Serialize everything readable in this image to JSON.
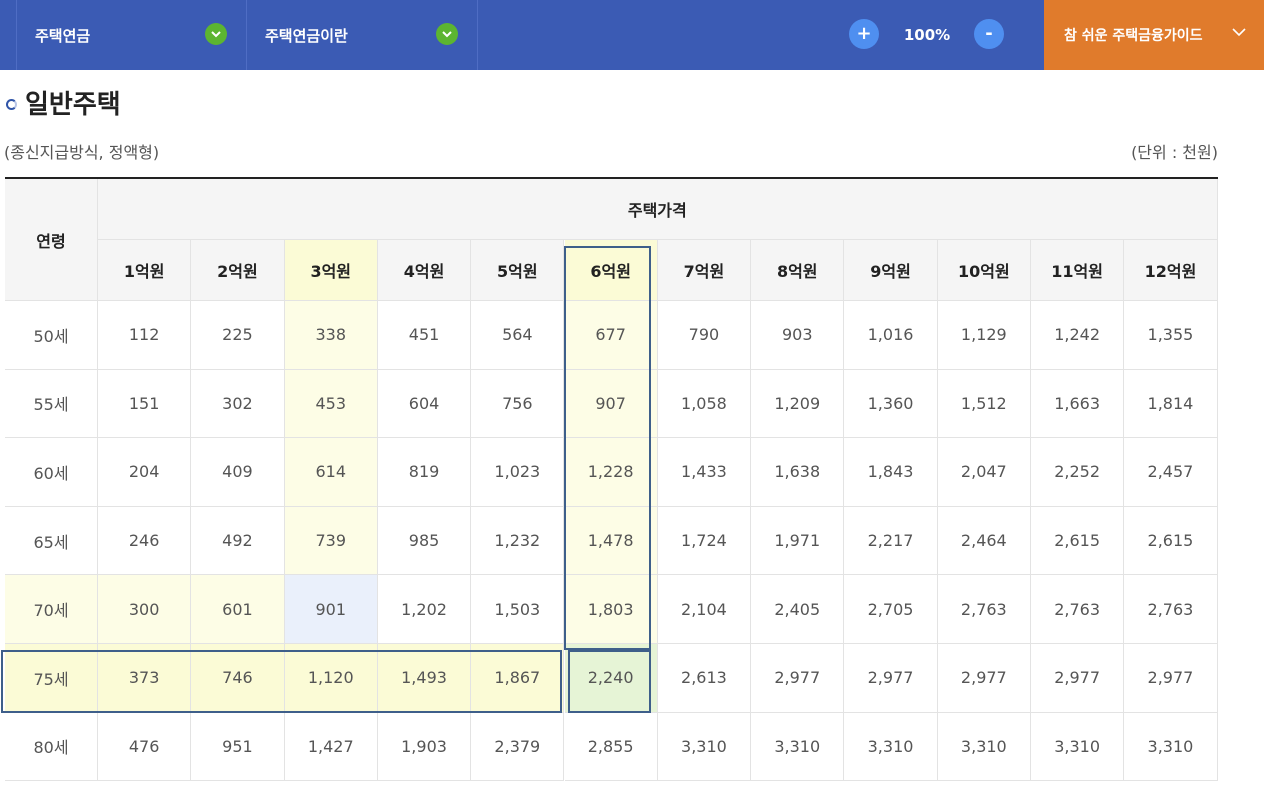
{
  "topbar": {
    "menu1": "주택연금",
    "menu2": "주택연금이란",
    "zoom_in": "+",
    "zoom_level": "100%",
    "zoom_out": "-",
    "guide": "참 쉬운 주택금융가이드"
  },
  "page": {
    "title": "일반주택",
    "subtitle": "(종신지급방식, 정액형)",
    "unit": "(단위 : 천원)"
  },
  "table": {
    "age_header": "연령",
    "price_header": "주택가격",
    "columns": [
      "1억원",
      "2억원",
      "3억원",
      "4억원",
      "5억원",
      "6억원",
      "7억원",
      "8억원",
      "9억원",
      "10억원",
      "11억원",
      "12억원"
    ],
    "rows": [
      {
        "age": "50세",
        "values": [
          "112",
          "225",
          "338",
          "451",
          "564",
          "677",
          "790",
          "903",
          "1,016",
          "1,129",
          "1,242",
          "1,355"
        ]
      },
      {
        "age": "55세",
        "values": [
          "151",
          "302",
          "453",
          "604",
          "756",
          "907",
          "1,058",
          "1,209",
          "1,360",
          "1,512",
          "1,663",
          "1,814"
        ]
      },
      {
        "age": "60세",
        "values": [
          "204",
          "409",
          "614",
          "819",
          "1,023",
          "1,228",
          "1,433",
          "1,638",
          "1,843",
          "2,047",
          "2,252",
          "2,457"
        ]
      },
      {
        "age": "65세",
        "values": [
          "246",
          "492",
          "739",
          "985",
          "1,232",
          "1,478",
          "1,724",
          "1,971",
          "2,217",
          "2,464",
          "2,615",
          "2,615"
        ]
      },
      {
        "age": "70세",
        "values": [
          "300",
          "601",
          "901",
          "1,202",
          "1,503",
          "1,803",
          "2,104",
          "2,405",
          "2,705",
          "2,763",
          "2,763",
          "2,763"
        ]
      },
      {
        "age": "75세",
        "values": [
          "373",
          "746",
          "1,120",
          "1,493",
          "1,867",
          "2,240",
          "2,613",
          "2,977",
          "2,977",
          "2,977",
          "2,977",
          "2,977"
        ]
      },
      {
        "age": "80세",
        "values": [
          "476",
          "951",
          "1,427",
          "1,903",
          "2,379",
          "2,855",
          "3,310",
          "3,310",
          "3,310",
          "3,310",
          "3,310",
          "3,310"
        ]
      }
    ]
  },
  "colors": {
    "topbar": "#3b5bb4",
    "guide": "#e07b2c",
    "highlight_yellow": "#fdfde6",
    "highlight_green": "#e6f4d6",
    "highlight_blue": "#eaf0fb",
    "box_border": "#3e5f8a"
  }
}
